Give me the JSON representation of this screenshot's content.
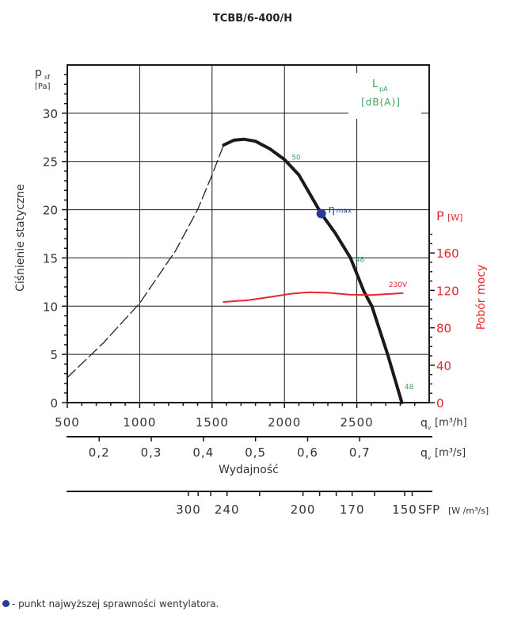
{
  "chart_data": {
    "type": "line",
    "title": "TCBB/6-400/H",
    "xlabel": "Wydajność",
    "x_unit_primary": "[m³/h]",
    "x_symbol": "q",
    "x_symbol_sub": "v",
    "x_unit_secondary": "[m³/s]",
    "xlim": [
      500,
      3000
    ],
    "x_ticks": [
      500,
      1000,
      1500,
      2000,
      2500
    ],
    "x2_ticks": [
      {
        "v": 0.2,
        "label": "0,2"
      },
      {
        "v": 0.3,
        "label": "0,3"
      },
      {
        "v": 0.4,
        "label": "0,4"
      },
      {
        "v": 0.5,
        "label": "0,5"
      },
      {
        "v": 0.6,
        "label": "0,6"
      },
      {
        "v": 0.7,
        "label": "0,7"
      }
    ],
    "ylabel": "Ciśnienie statyczne",
    "y_symbol": "p",
    "y_symbol_sub": "sf",
    "y_unit": "[Pa]",
    "ylim": [
      0,
      35
    ],
    "y_ticks": [
      0,
      5,
      10,
      15,
      20,
      25,
      30
    ],
    "y2label": "Pobór mocy",
    "y2_symbol": "P",
    "y2_unit": "[W]",
    "y2lim": [
      0,
      180
    ],
    "y2_ticks": [
      0,
      40,
      80,
      120,
      160
    ],
    "sfp": {
      "label": "SFP",
      "unit": "[W /m³/s]",
      "ticks_qv": [
        1453,
        1520,
        1607,
        1720,
        1945,
        2245,
        2360,
        2475,
        2585,
        2740,
        2948,
        3000
      ],
      "labels": [
        {
          "v": "300",
          "qv": 1453
        },
        {
          "v": "240",
          "qv": 1720
        },
        {
          "v": "200",
          "qv": 2245
        },
        {
          "v": "170",
          "qv": 2585
        },
        {
          "v": "150",
          "qv": 2948
        }
      ]
    },
    "noise_label": {
      "symbol": "L",
      "sub": "pA",
      "unit": "[dB(A)]"
    },
    "series": [
      {
        "name": "pressure-unstable",
        "style": "dashed",
        "color": "#222222",
        "x": [
          500,
          750,
          1000,
          1250,
          1400,
          1500,
          1580
        ],
        "y": [
          2.6,
          6.2,
          10.3,
          15.8,
          20.0,
          23.6,
          26.7
        ]
      },
      {
        "name": "pressure",
        "style": "solid",
        "color": "#1a1a1a",
        "x": [
          1580,
          1650,
          1720,
          1800,
          1900,
          2000,
          2100,
          2254,
          2350,
          2456,
          2550,
          2604,
          2713,
          2811
        ],
        "y": [
          26.7,
          27.2,
          27.3,
          27.1,
          26.3,
          25.2,
          23.6,
          19.6,
          17.6,
          15.0,
          11.5,
          10.0,
          5.0,
          0
        ]
      },
      {
        "name": "230V",
        "axis": "y2",
        "style": "solid",
        "color": "#e8262b",
        "x": [
          1580,
          1750,
          1900,
          2050,
          2167,
          2300,
          2450,
          2600,
          2817
        ],
        "y": [
          107.6,
          109.5,
          113,
          116.5,
          118,
          117.5,
          115.5,
          115,
          117
        ]
      }
    ],
    "annotations": [
      {
        "text": "50",
        "x": 2050,
        "y": 25.2,
        "color": "#3aa15a"
      },
      {
        "text": "48",
        "x": 2490,
        "y": 14.6,
        "color": "#3aa15a"
      },
      {
        "text": "48",
        "x": 2830,
        "y": 1.4,
        "color": "#3aa15a"
      },
      {
        "text": "230V",
        "x": 2720,
        "y": 12.0,
        "color": "#e8262b"
      }
    ],
    "eta_max": {
      "x": 2254,
      "y": 19.6,
      "symbol": "η",
      "label": "max",
      "color": "#2a3a9a"
    }
  },
  "footer": {
    "bullet_color": "#2a3a9a",
    "text": "- punkt najwyższej sprawności wentylatora."
  },
  "colors": {
    "power": "#e8262b",
    "noise": "#3aa15a",
    "axis": "#1a1a1a"
  }
}
